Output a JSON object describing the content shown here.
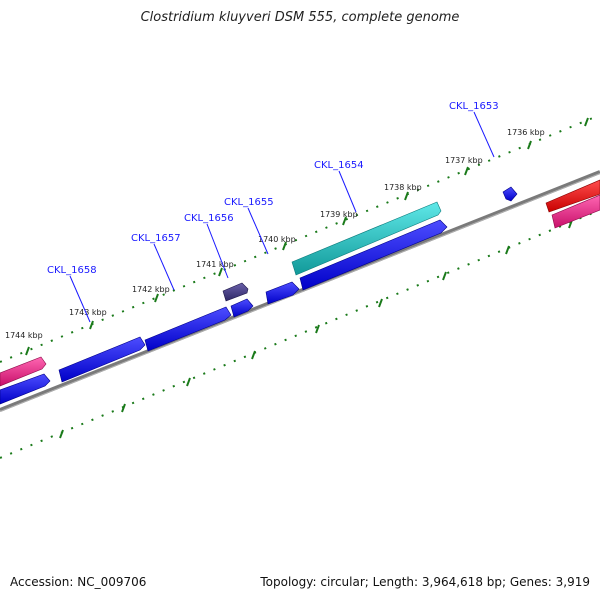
{
  "title": "Clostridium kluyveri DSM 555, complete genome",
  "footer": {
    "accession": "Accession: NC_009706",
    "topology": "Topology: circular; Length: 3,964,618 bp; Genes: 3,919"
  },
  "tick_labels": [
    "1736 kbp",
    "1737 kbp",
    "1738 kbp",
    "1739 kbp",
    "1740 kbp",
    "1741 kbp",
    "1742 kbp",
    "1743 kbp",
    "1744 kbp"
  ],
  "gene_labels": [
    "CKL_1653",
    "CKL_1654",
    "CKL_1655",
    "CKL_1656",
    "CKL_1657",
    "CKL_1658"
  ],
  "colors": {
    "forward_cds": "#1111ee",
    "selected_cds": "#22cccc",
    "highlight_cds": "#4a3f8a",
    "pink_feature": "#ee2288",
    "red_feature": "#ee1111",
    "backbone": "#808080",
    "ticks": "#1a7a1a",
    "label": "#1a1aff"
  }
}
